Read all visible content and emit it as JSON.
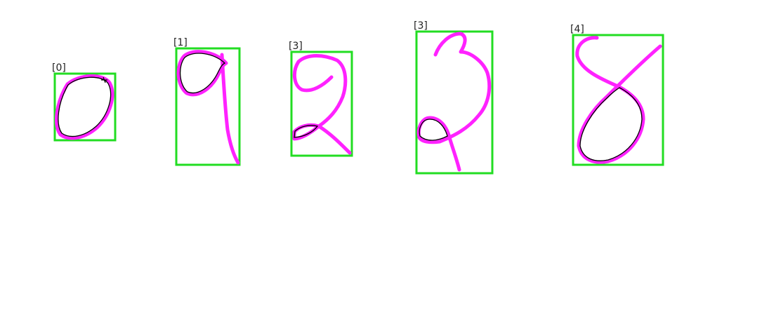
{
  "colors": {
    "box": "#22dd22",
    "stroke": "#ff22ff",
    "loop_outline": "#000000",
    "label": "#222222",
    "background": "#ffffff"
  },
  "detections": [
    {
      "label": "[0]"
    },
    {
      "label": "[1]"
    },
    {
      "label": "[3]"
    },
    {
      "label": "[3]"
    },
    {
      "label": "[4]"
    }
  ]
}
